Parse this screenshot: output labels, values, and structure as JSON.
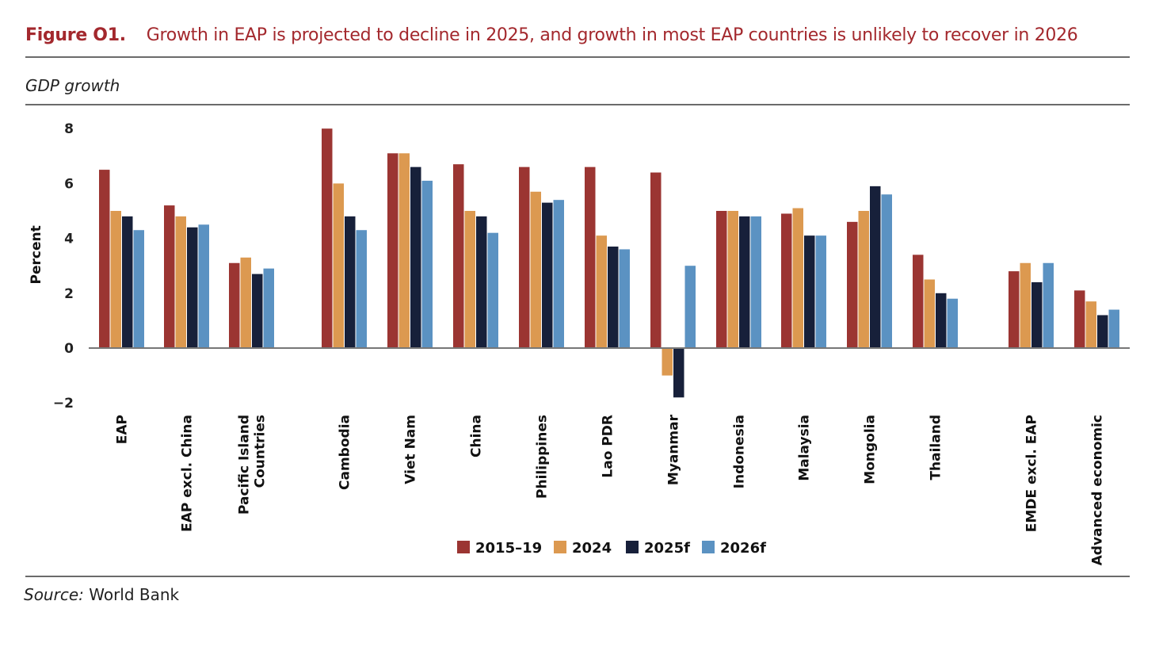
{
  "figure": {
    "label": "Figure O1.",
    "title": "Growth in EAP is projected to decline in 2025, and growth in most EAP countries is unlikely to recover in 2026",
    "subtitle": "GDP growth",
    "source_label": "Source:",
    "source_text": "World Bank"
  },
  "colors": {
    "title": "#a3282d",
    "2015–19": "#9b3532",
    "2024": "#dc9950",
    "2025f": "#17203a",
    "2026f": "#5b92c2"
  },
  "chart_data": {
    "type": "bar",
    "title": "Growth in EAP is projected to decline in 2025, and growth in most EAP countries is unlikely to recover in 2026",
    "subtitle": "GDP growth",
    "xlabel": "",
    "ylabel": "Percent",
    "ylim": [
      -2,
      8
    ],
    "yticks": [
      -2,
      0,
      2,
      4,
      6,
      8
    ],
    "ytick_labels": [
      "−2",
      "0",
      "2",
      "4",
      "6",
      "8"
    ],
    "grid": false,
    "legend_position": "bottom",
    "categories": [
      [
        "EAP"
      ],
      [
        "EAP excl. China"
      ],
      [
        "Pacific Island",
        "Countries"
      ],
      [
        "Cambodia"
      ],
      [
        "Viet Nam"
      ],
      [
        "China"
      ],
      [
        "Philippines"
      ],
      [
        "Lao PDR"
      ],
      [
        "Myanmar"
      ],
      [
        "Indonesia"
      ],
      [
        "Malaysia"
      ],
      [
        "Mongolia"
      ],
      [
        "Thailand"
      ],
      [
        "EMDE excl. EAP"
      ],
      [
        "Advanced economic"
      ]
    ],
    "category_groups": [
      [
        0,
        1,
        2
      ],
      [
        3,
        4,
        5,
        6,
        7,
        8,
        9,
        10,
        11,
        12
      ],
      [
        13,
        14
      ]
    ],
    "series": [
      {
        "name": "2015–19",
        "color": "#9b3532",
        "values": [
          6.5,
          5.2,
          3.1,
          8.0,
          7.1,
          6.7,
          6.6,
          6.6,
          6.4,
          5.0,
          4.9,
          4.6,
          3.4,
          2.8,
          2.1
        ]
      },
      {
        "name": "2024",
        "color": "#dc9950",
        "values": [
          5.0,
          4.8,
          3.3,
          6.0,
          7.1,
          5.0,
          5.7,
          4.1,
          -1.0,
          5.0,
          5.1,
          5.0,
          2.5,
          3.1,
          1.7
        ]
      },
      {
        "name": "2025f",
        "color": "#17203a",
        "values": [
          4.8,
          4.4,
          2.7,
          4.8,
          6.6,
          4.8,
          5.3,
          3.7,
          -1.8,
          4.8,
          4.1,
          5.9,
          2.0,
          2.4,
          1.2
        ]
      },
      {
        "name": "2026f",
        "color": "#5b92c2",
        "values": [
          4.3,
          4.5,
          2.9,
          4.3,
          6.1,
          4.2,
          5.4,
          3.6,
          3.0,
          4.8,
          4.1,
          5.6,
          1.8,
          3.1,
          1.4
        ]
      }
    ]
  }
}
